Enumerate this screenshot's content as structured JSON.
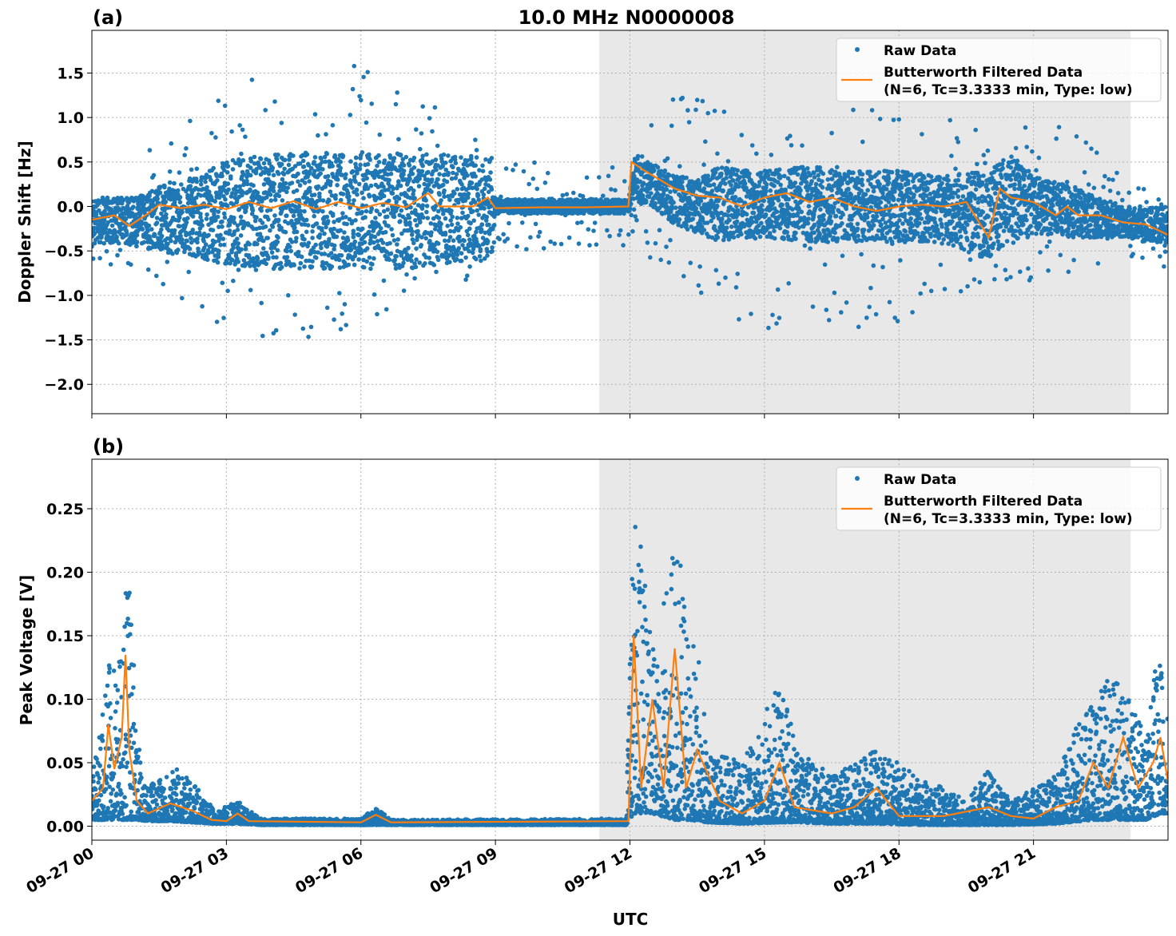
{
  "chart_data": [
    {
      "type": "scatter",
      "panel_label": "(a)",
      "title": "10.0 MHz N0000008",
      "ylabel": "Doppler Shift [Hz]",
      "xlabel": "",
      "ylim": [
        -2.33,
        1.98
      ],
      "xlim": [
        "09-27 00:00",
        "09-28 00:00"
      ],
      "yticks": [
        "−2.0",
        "−1.5",
        "−1.0",
        "−0.5",
        "0.0",
        "0.5",
        "1.0",
        "1.5"
      ],
      "ytick_values": [
        -2.0,
        -1.5,
        -1.0,
        -0.5,
        0.0,
        0.5,
        1.0,
        1.5
      ],
      "grid": true,
      "shaded_interval": [
        "09-27 11:19",
        "09-27 23:10"
      ],
      "legend": {
        "placement": "top-right",
        "entries": [
          "Raw Data",
          "Butterworth Filtered Data",
          "(N=6, Tc=3.3333 min, Type: low)"
        ]
      },
      "raw_band": [
        [
          "00:00",
          -0.45,
          0.1
        ],
        [
          "00:30",
          -0.4,
          0.1
        ],
        [
          "01:00",
          -0.45,
          0.1
        ],
        [
          "01:30",
          -0.5,
          0.25
        ],
        [
          "02:00",
          -0.55,
          0.3
        ],
        [
          "02:30",
          -0.6,
          0.35
        ],
        [
          "03:00",
          -0.65,
          0.55
        ],
        [
          "04:00",
          -0.7,
          0.6
        ],
        [
          "05:00",
          -0.7,
          0.6
        ],
        [
          "06:00",
          -0.7,
          0.6
        ],
        [
          "07:00",
          -0.7,
          0.6
        ],
        [
          "08:00",
          -0.65,
          0.6
        ],
        [
          "08:55",
          -0.6,
          0.55
        ],
        [
          "09:00",
          -0.08,
          0.08
        ],
        [
          "10:00",
          -0.08,
          0.08
        ],
        [
          "11:00",
          -0.08,
          0.08
        ],
        [
          "11:58",
          -0.08,
          0.08
        ],
        [
          "12:05",
          0.05,
          0.55
        ],
        [
          "12:30",
          0.0,
          0.5
        ],
        [
          "13:00",
          -0.2,
          0.35
        ],
        [
          "13:30",
          -0.3,
          0.3
        ],
        [
          "14:00",
          -0.4,
          0.45
        ],
        [
          "15:00",
          -0.35,
          0.4
        ],
        [
          "16:00",
          -0.4,
          0.45
        ],
        [
          "17:00",
          -0.4,
          0.4
        ],
        [
          "18:00",
          -0.4,
          0.4
        ],
        [
          "19:00",
          -0.4,
          0.35
        ],
        [
          "20:00",
          -0.6,
          0.4
        ],
        [
          "20:30",
          -0.4,
          0.6
        ],
        [
          "21:00",
          -0.35,
          0.35
        ],
        [
          "22:00",
          -0.35,
          0.2
        ],
        [
          "23:00",
          -0.35,
          0.0
        ],
        [
          "24:00",
          -0.45,
          0.0
        ]
      ],
      "raw_outliers": [
        [
          "01:00",
          -0.7,
          0.55
        ],
        [
          "02:00",
          -1.2,
          0.9
        ],
        [
          "03:00",
          -1.4,
          1.3
        ],
        [
          "04:00",
          -1.5,
          1.75
        ],
        [
          "05:00",
          -1.7,
          1.5
        ],
        [
          "06:00",
          -1.3,
          1.7
        ],
        [
          "07:00",
          -1.1,
          1.3
        ],
        [
          "08:00",
          -1.0,
          1.2
        ],
        [
          "09:00",
          -0.5,
          0.5
        ],
        [
          "10:00",
          -0.5,
          0.5
        ],
        [
          "11:00",
          -0.5,
          0.4
        ],
        [
          "12:00",
          -0.5,
          0.6
        ],
        [
          "13:00",
          -0.8,
          1.3
        ],
        [
          "14:00",
          -1.2,
          1.3
        ],
        [
          "14:50",
          -1.5,
          0.9
        ],
        [
          "16:00",
          -1.2,
          1.1
        ],
        [
          "17:00",
          -1.4,
          1.2
        ],
        [
          "18:00",
          -1.5,
          1.0
        ],
        [
          "19:00",
          -1.2,
          1.0
        ],
        [
          "20:00",
          -1.0,
          0.9
        ],
        [
          "21:00",
          -1.0,
          0.9
        ],
        [
          "22:00",
          -0.7,
          0.9
        ],
        [
          "23:00",
          -0.6,
          0.3
        ],
        [
          "24:00",
          -0.7,
          0.1
        ]
      ],
      "filtered": [
        [
          "00:00",
          -0.15
        ],
        [
          "00:30",
          -0.1
        ],
        [
          "00:50",
          -0.22
        ],
        [
          "01:15",
          -0.08
        ],
        [
          "01:30",
          0.02
        ],
        [
          "02:00",
          -0.02
        ],
        [
          "02:30",
          0.02
        ],
        [
          "03:00",
          -0.03
        ],
        [
          "03:30",
          0.05
        ],
        [
          "04:00",
          -0.02
        ],
        [
          "04:30",
          0.06
        ],
        [
          "05:00",
          -0.03
        ],
        [
          "05:30",
          0.05
        ],
        [
          "06:00",
          -0.02
        ],
        [
          "06:30",
          0.04
        ],
        [
          "07:00",
          -0.01
        ],
        [
          "07:30",
          0.15
        ],
        [
          "07:45",
          0.0
        ],
        [
          "08:30",
          0.0
        ],
        [
          "08:50",
          0.1
        ],
        [
          "09:00",
          -0.02
        ],
        [
          "10:00",
          -0.01
        ],
        [
          "11:00",
          -0.01
        ],
        [
          "11:58",
          0.0
        ],
        [
          "12:02",
          0.5
        ],
        [
          "12:20",
          0.4
        ],
        [
          "12:40",
          0.3
        ],
        [
          "13:00",
          0.2
        ],
        [
          "13:30",
          0.12
        ],
        [
          "14:00",
          0.1
        ],
        [
          "14:30",
          0.0
        ],
        [
          "15:00",
          0.1
        ],
        [
          "15:30",
          0.15
        ],
        [
          "16:00",
          0.05
        ],
        [
          "16:30",
          0.1
        ],
        [
          "17:00",
          0.0
        ],
        [
          "17:30",
          -0.05
        ],
        [
          "18:00",
          0.0
        ],
        [
          "18:30",
          0.02
        ],
        [
          "19:00",
          0.0
        ],
        [
          "19:30",
          0.05
        ],
        [
          "20:00",
          -0.35
        ],
        [
          "20:15",
          0.2
        ],
        [
          "20:30",
          0.1
        ],
        [
          "21:00",
          0.05
        ],
        [
          "21:30",
          -0.1
        ],
        [
          "21:45",
          0.0
        ],
        [
          "22:00",
          -0.1
        ],
        [
          "22:30",
          -0.1
        ],
        [
          "23:00",
          -0.18
        ],
        [
          "23:30",
          -0.2
        ],
        [
          "24:00",
          -0.32
        ]
      ]
    },
    {
      "type": "scatter",
      "panel_label": "(b)",
      "title": "",
      "ylabel": "Peak Voltage [V]",
      "xlabel": "UTC",
      "ylim": [
        -0.011,
        0.289
      ],
      "xlim": [
        "09-27 00:00",
        "09-28 00:00"
      ],
      "yticks": [
        "0.00",
        "0.05",
        "0.10",
        "0.15",
        "0.20",
        "0.25"
      ],
      "ytick_values": [
        0.0,
        0.05,
        0.1,
        0.15,
        0.2,
        0.25
      ],
      "xticks": [
        "09-27 00",
        "09-27 03",
        "09-27 06",
        "09-27 09",
        "09-27 12",
        "09-27 15",
        "09-27 18",
        "09-27 21"
      ],
      "grid": true,
      "shaded_interval": [
        "09-27 11:19",
        "09-27 23:10"
      ],
      "legend": {
        "placement": "top-right",
        "entries": [
          "Raw Data",
          "Butterworth Filtered Data",
          "(N=6, Tc=3.3333 min, Type: low)"
        ]
      },
      "raw_band": [
        [
          "00:00",
          0.005,
          0.04
        ],
        [
          "00:15",
          0.005,
          0.09
        ],
        [
          "00:25",
          0.005,
          0.14
        ],
        [
          "00:40",
          0.005,
          0.15
        ],
        [
          "00:50",
          0.005,
          0.22
        ],
        [
          "01:00",
          0.005,
          0.07
        ],
        [
          "01:15",
          0.004,
          0.03
        ],
        [
          "01:45",
          0.004,
          0.05
        ],
        [
          "02:15",
          0.003,
          0.035
        ],
        [
          "02:45",
          0.002,
          0.012
        ],
        [
          "03:15",
          0.002,
          0.02
        ],
        [
          "03:45",
          0.001,
          0.006
        ],
        [
          "06:00",
          0.001,
          0.006
        ],
        [
          "06:20",
          0.001,
          0.015
        ],
        [
          "06:40",
          0.001,
          0.005
        ],
        [
          "11:55",
          0.001,
          0.006
        ],
        [
          "12:05",
          0.01,
          0.27
        ],
        [
          "12:30",
          0.01,
          0.14
        ],
        [
          "13:00",
          0.005,
          0.22
        ],
        [
          "13:20",
          0.005,
          0.2
        ],
        [
          "13:45",
          0.003,
          0.06
        ],
        [
          "14:30",
          0.002,
          0.05
        ],
        [
          "15:20",
          0.003,
          0.115
        ],
        [
          "15:45",
          0.003,
          0.06
        ],
        [
          "16:30",
          0.002,
          0.04
        ],
        [
          "17:30",
          0.002,
          0.06
        ],
        [
          "18:30",
          0.001,
          0.04
        ],
        [
          "19:30",
          0.001,
          0.02
        ],
        [
          "20:00",
          0.001,
          0.045
        ],
        [
          "20:30",
          0.001,
          0.02
        ],
        [
          "21:30",
          0.002,
          0.04
        ],
        [
          "22:20",
          0.005,
          0.11
        ],
        [
          "23:00",
          0.005,
          0.12
        ],
        [
          "23:30",
          0.005,
          0.07
        ],
        [
          "23:50",
          0.01,
          0.16
        ],
        [
          "24:00",
          0.01,
          0.08
        ]
      ],
      "filtered": [
        [
          "00:00",
          0.02
        ],
        [
          "00:15",
          0.03
        ],
        [
          "00:22",
          0.08
        ],
        [
          "00:30",
          0.045
        ],
        [
          "00:40",
          0.07
        ],
        [
          "00:45",
          0.135
        ],
        [
          "00:50",
          0.06
        ],
        [
          "01:00",
          0.02
        ],
        [
          "01:15",
          0.01
        ],
        [
          "01:45",
          0.018
        ],
        [
          "02:15",
          0.012
        ],
        [
          "02:40",
          0.005
        ],
        [
          "03:00",
          0.004
        ],
        [
          "03:15",
          0.01
        ],
        [
          "03:30",
          0.004
        ],
        [
          "06:00",
          0.003
        ],
        [
          "06:20",
          0.009
        ],
        [
          "06:40",
          0.003
        ],
        [
          "11:58",
          0.004
        ],
        [
          "12:05",
          0.15
        ],
        [
          "12:15",
          0.03
        ],
        [
          "12:30",
          0.1
        ],
        [
          "12:45",
          0.03
        ],
        [
          "13:00",
          0.14
        ],
        [
          "13:15",
          0.03
        ],
        [
          "13:30",
          0.06
        ],
        [
          "14:00",
          0.02
        ],
        [
          "14:30",
          0.01
        ],
        [
          "15:00",
          0.02
        ],
        [
          "15:20",
          0.05
        ],
        [
          "15:40",
          0.015
        ],
        [
          "16:30",
          0.01
        ],
        [
          "17:00",
          0.015
        ],
        [
          "17:30",
          0.03
        ],
        [
          "18:00",
          0.008
        ],
        [
          "19:00",
          0.008
        ],
        [
          "20:00",
          0.015
        ],
        [
          "20:30",
          0.008
        ],
        [
          "21:00",
          0.006
        ],
        [
          "21:30",
          0.015
        ],
        [
          "22:00",
          0.02
        ],
        [
          "22:20",
          0.05
        ],
        [
          "22:40",
          0.03
        ],
        [
          "23:00",
          0.07
        ],
        [
          "23:20",
          0.03
        ],
        [
          "23:40",
          0.05
        ],
        [
          "23:50",
          0.07
        ],
        [
          "24:00",
          0.035
        ]
      ]
    }
  ],
  "colors": {
    "raw": "#1f77b4",
    "filtered": "#ff7f0e",
    "shade": "#e8e8e8",
    "grid": "#b0b0b0"
  }
}
